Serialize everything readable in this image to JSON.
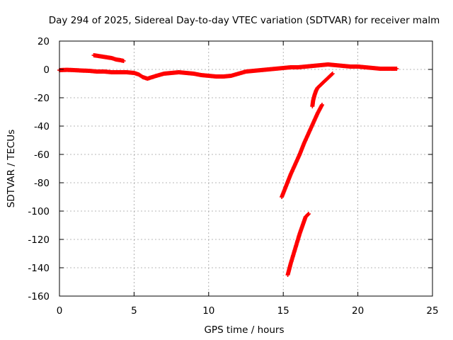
{
  "chart_data": {
    "type": "scatter",
    "title": "Day 294 of 2025, Sidereal Day-to-day VTEC variation (SDTVAR) for receiver malm",
    "xlabel": "GPS time / hours",
    "ylabel": "SDTVAR / TECUs",
    "xlim": [
      0,
      25
    ],
    "ylim": [
      -160,
      20
    ],
    "x_ticks": [
      0,
      5,
      10,
      15,
      20,
      25
    ],
    "y_ticks": [
      20,
      0,
      -20,
      -40,
      -60,
      -80,
      -100,
      -120,
      -140,
      -160
    ],
    "grid": true,
    "marker": "+",
    "color": "#ff0000",
    "series": [
      {
        "name": "main-arc",
        "x": [
          0.0,
          0.5,
          1.0,
          1.5,
          2.0,
          2.5,
          3.0,
          3.5,
          4.0,
          4.5,
          5.0,
          5.3,
          5.6,
          5.9,
          6.2,
          6.5,
          7.0,
          7.5,
          8.0,
          8.5,
          9.0,
          9.5,
          10.0,
          10.5,
          11.0,
          11.5,
          12.0,
          12.5,
          13.0,
          13.5,
          14.0,
          14.5,
          15.0,
          15.5,
          16.0,
          16.5,
          17.0,
          17.5,
          18.0,
          18.5,
          19.0,
          19.5,
          20.0,
          20.5,
          21.0,
          21.5,
          22.0,
          22.6
        ],
        "y": [
          -0.5,
          -0.3,
          -0.5,
          -0.8,
          -1.0,
          -1.5,
          -1.5,
          -2.0,
          -2.0,
          -2.0,
          -2.5,
          -3.5,
          -5.5,
          -6.5,
          -5.5,
          -4.5,
          -3.0,
          -2.5,
          -2.0,
          -2.5,
          -3.0,
          -4.0,
          -4.5,
          -5.0,
          -5.0,
          -4.5,
          -3.0,
          -1.5,
          -1.0,
          -0.5,
          0.0,
          0.5,
          1.0,
          1.5,
          1.5,
          2.0,
          2.5,
          3.0,
          3.5,
          3.0,
          2.5,
          2.0,
          2.0,
          1.5,
          1.0,
          0.5,
          0.5,
          0.5
        ]
      },
      {
        "name": "early-arc",
        "x": [
          2.3,
          2.6,
          2.9,
          3.2,
          3.5,
          3.8,
          4.1,
          4.3
        ],
        "y": [
          10,
          9.5,
          9,
          8.5,
          8,
          7,
          6.5,
          6
        ]
      },
      {
        "name": "descending-arc",
        "x": [
          18.3,
          18.1,
          17.9,
          17.7,
          17.5,
          17.3,
          17.2,
          17.1,
          17.0,
          16.95
        ],
        "y": [
          -3,
          -5,
          -7,
          -9,
          -11,
          -13,
          -15,
          -18,
          -22,
          -26
        ]
      },
      {
        "name": "steep-arc",
        "x": [
          14.9,
          15.2,
          15.5,
          15.8,
          16.1,
          16.4,
          16.7,
          17.0,
          17.3,
          17.6
        ],
        "y": [
          -90,
          -82,
          -74,
          -67,
          -60,
          -52,
          -45,
          -38,
          -31,
          -25
        ]
      },
      {
        "name": "low-arc",
        "x": [
          15.3,
          15.5,
          15.7,
          15.9,
          16.1,
          16.3,
          16.5,
          16.7
        ],
        "y": [
          -145,
          -137,
          -130,
          -123,
          -116,
          -110,
          -104,
          -102
        ]
      }
    ]
  }
}
